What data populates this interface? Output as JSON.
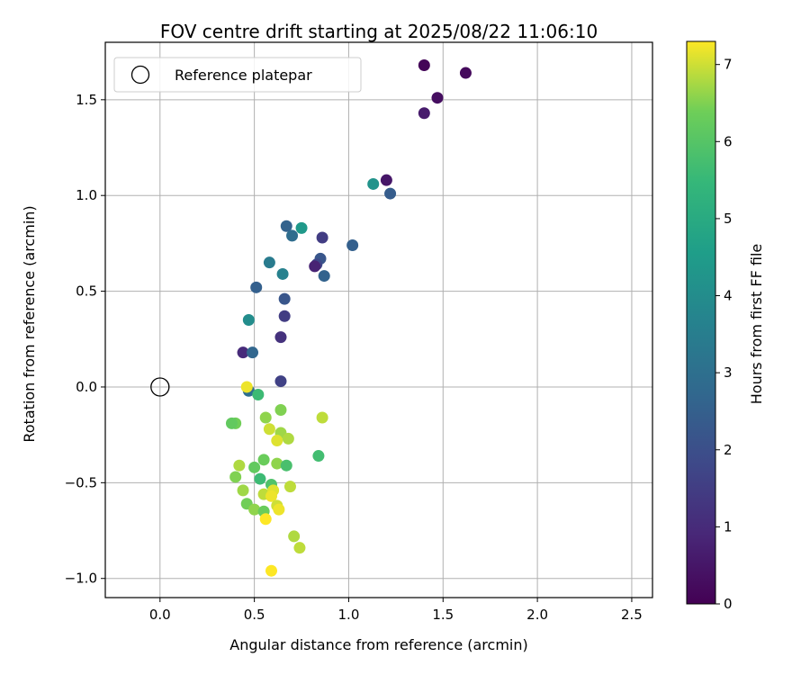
{
  "chart_data": {
    "type": "scatter",
    "title": "FOV centre drift starting at 2025/08/22 11:06:10",
    "xlabel": "Angular distance from reference (arcmin)",
    "ylabel": "Rotation from reference (arcmin)",
    "xlim": [
      -0.29,
      2.61
    ],
    "ylim": [
      -1.1,
      1.8
    ],
    "xticks": [
      0.0,
      0.5,
      1.0,
      1.5,
      2.0,
      2.5
    ],
    "xtick_labels": [
      "0.0",
      "0.5",
      "1.0",
      "1.5",
      "2.0",
      "2.5"
    ],
    "yticks": [
      -1.0,
      -0.5,
      0.0,
      0.5,
      1.0,
      1.5
    ],
    "ytick_labels": [
      "−1.0",
      "−0.5",
      "0.0",
      "0.5",
      "1.0",
      "1.5"
    ],
    "grid": true,
    "legend": {
      "placement": "upper-left",
      "entries": [
        "Reference platepar"
      ]
    },
    "reference_point": {
      "x": 0.0,
      "y": 0.0,
      "marker": "hollow-circle"
    },
    "colorbar": {
      "label": "Hours from first FF file",
      "colormap": "viridis",
      "range": [
        0,
        7.3
      ],
      "ticks": [
        0,
        1,
        2,
        3,
        4,
        5,
        6,
        7
      ],
      "tick_labels": [
        "0",
        "1",
        "2",
        "3",
        "4",
        "5",
        "6",
        "7"
      ]
    },
    "points": [
      {
        "x": 1.4,
        "y": 1.68,
        "c": 0.1
      },
      {
        "x": 1.62,
        "y": 1.64,
        "c": 0.2
      },
      {
        "x": 1.47,
        "y": 1.51,
        "c": 0.3
      },
      {
        "x": 1.4,
        "y": 1.43,
        "c": 0.6
      },
      {
        "x": 1.2,
        "y": 1.08,
        "c": 0.5
      },
      {
        "x": 1.22,
        "y": 1.01,
        "c": 2.4
      },
      {
        "x": 1.13,
        "y": 1.06,
        "c": 4.2
      },
      {
        "x": 1.02,
        "y": 0.74,
        "c": 2.5
      },
      {
        "x": 0.86,
        "y": 0.78,
        "c": 1.5
      },
      {
        "x": 0.75,
        "y": 0.83,
        "c": 4.4
      },
      {
        "x": 0.67,
        "y": 0.84,
        "c": 2.6
      },
      {
        "x": 0.7,
        "y": 0.79,
        "c": 2.9
      },
      {
        "x": 0.85,
        "y": 0.67,
        "c": 2.2
      },
      {
        "x": 0.83,
        "y": 0.64,
        "c": 1.8
      },
      {
        "x": 0.82,
        "y": 0.63,
        "c": 0.8
      },
      {
        "x": 0.87,
        "y": 0.58,
        "c": 2.6
      },
      {
        "x": 0.58,
        "y": 0.65,
        "c": 3.4
      },
      {
        "x": 0.65,
        "y": 0.59,
        "c": 3.6
      },
      {
        "x": 0.51,
        "y": 0.52,
        "c": 2.5
      },
      {
        "x": 0.66,
        "y": 0.46,
        "c": 2.2
      },
      {
        "x": 0.66,
        "y": 0.37,
        "c": 1.5
      },
      {
        "x": 0.47,
        "y": 0.35,
        "c": 4.0
      },
      {
        "x": 0.64,
        "y": 0.26,
        "c": 1.2
      },
      {
        "x": 0.44,
        "y": 0.18,
        "c": 1.0
      },
      {
        "x": 0.49,
        "y": 0.18,
        "c": 2.7
      },
      {
        "x": 0.64,
        "y": 0.03,
        "c": 1.6
      },
      {
        "x": 0.47,
        "y": -0.02,
        "c": 3.0
      },
      {
        "x": 0.46,
        "y": 0.0,
        "c": 7.2
      },
      {
        "x": 0.52,
        "y": -0.04,
        "c": 5.6
      },
      {
        "x": 0.4,
        "y": -0.19,
        "c": 6.4
      },
      {
        "x": 0.38,
        "y": -0.19,
        "c": 6.2
      },
      {
        "x": 0.56,
        "y": -0.16,
        "c": 6.6
      },
      {
        "x": 0.64,
        "y": -0.12,
        "c": 6.5
      },
      {
        "x": 0.86,
        "y": -0.16,
        "c": 6.9
      },
      {
        "x": 0.58,
        "y": -0.22,
        "c": 7.0
      },
      {
        "x": 0.64,
        "y": -0.24,
        "c": 6.7
      },
      {
        "x": 0.62,
        "y": -0.28,
        "c": 7.1
      },
      {
        "x": 0.68,
        "y": -0.27,
        "c": 6.8
      },
      {
        "x": 0.84,
        "y": -0.36,
        "c": 5.7
      },
      {
        "x": 0.55,
        "y": -0.38,
        "c": 6.3
      },
      {
        "x": 0.62,
        "y": -0.4,
        "c": 6.6
      },
      {
        "x": 0.67,
        "y": -0.41,
        "c": 5.8
      },
      {
        "x": 0.5,
        "y": -0.42,
        "c": 6.2
      },
      {
        "x": 0.42,
        "y": -0.41,
        "c": 6.8
      },
      {
        "x": 0.4,
        "y": -0.47,
        "c": 6.5
      },
      {
        "x": 0.53,
        "y": -0.48,
        "c": 5.6
      },
      {
        "x": 0.59,
        "y": -0.51,
        "c": 5.9
      },
      {
        "x": 0.69,
        "y": -0.52,
        "c": 6.9
      },
      {
        "x": 0.44,
        "y": -0.54,
        "c": 6.7
      },
      {
        "x": 0.55,
        "y": -0.56,
        "c": 6.9
      },
      {
        "x": 0.6,
        "y": -0.54,
        "c": 7.1
      },
      {
        "x": 0.59,
        "y": -0.57,
        "c": 7.2
      },
      {
        "x": 0.46,
        "y": -0.61,
        "c": 6.4
      },
      {
        "x": 0.62,
        "y": -0.62,
        "c": 7.0
      },
      {
        "x": 0.63,
        "y": -0.64,
        "c": 7.2
      },
      {
        "x": 0.5,
        "y": -0.64,
        "c": 6.6
      },
      {
        "x": 0.55,
        "y": -0.65,
        "c": 6.3
      },
      {
        "x": 0.56,
        "y": -0.69,
        "c": 7.3
      },
      {
        "x": 0.71,
        "y": -0.78,
        "c": 6.8
      },
      {
        "x": 0.74,
        "y": -0.84,
        "c": 6.9
      },
      {
        "x": 0.59,
        "y": -0.96,
        "c": 7.3
      }
    ]
  }
}
